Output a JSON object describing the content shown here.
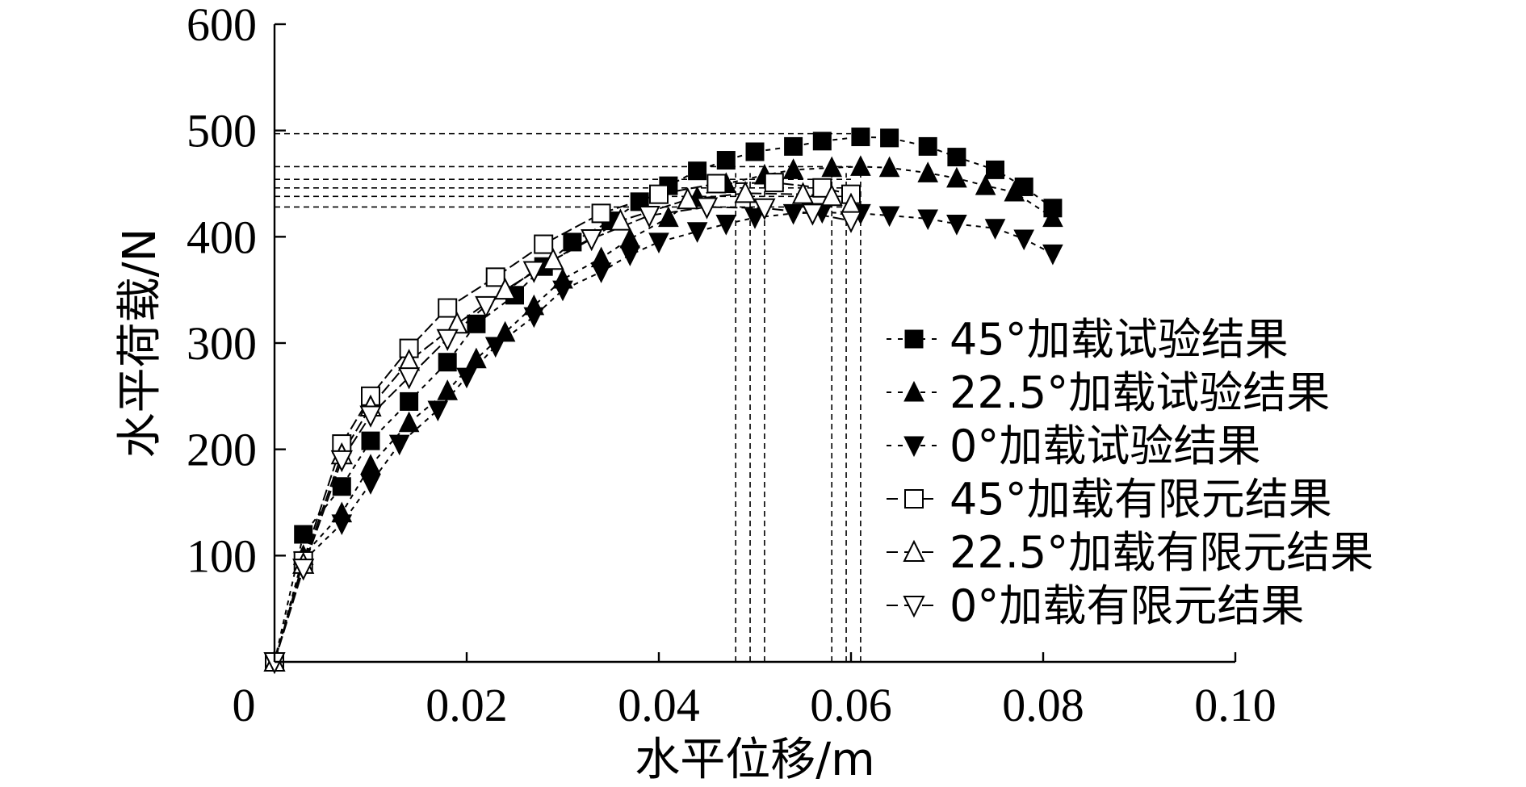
{
  "chart_data": {
    "type": "line",
    "xlabel": "水平位移/m",
    "ylabel": "水平荷载/N",
    "xlim": [
      0,
      0.1
    ],
    "ylim": [
      0,
      600
    ],
    "x_ticks": [
      "0",
      "0.02",
      "0.04",
      "0.06",
      "0.08",
      "0.10"
    ],
    "y_ticks": [
      "100",
      "200",
      "300",
      "400",
      "500",
      "600"
    ],
    "grid": false,
    "legend_position": "right",
    "series": [
      {
        "name": "45°加载试验结果",
        "marker": "square-filled",
        "dash": "6 6",
        "points": [
          [
            0,
            0
          ],
          [
            0.003,
            120
          ],
          [
            0.007,
            165
          ],
          [
            0.01,
            208
          ],
          [
            0.014,
            245
          ],
          [
            0.018,
            282
          ],
          [
            0.021,
            318
          ],
          [
            0.025,
            345
          ],
          [
            0.028,
            372
          ],
          [
            0.031,
            395
          ],
          [
            0.035,
            415
          ],
          [
            0.038,
            433
          ],
          [
            0.041,
            448
          ],
          [
            0.044,
            462
          ],
          [
            0.047,
            472
          ],
          [
            0.05,
            480
          ],
          [
            0.054,
            485
          ],
          [
            0.057,
            490
          ],
          [
            0.061,
            494
          ],
          [
            0.064,
            493
          ],
          [
            0.068,
            485
          ],
          [
            0.071,
            475
          ],
          [
            0.075,
            463
          ],
          [
            0.078,
            447
          ],
          [
            0.081,
            427
          ]
        ]
      },
      {
        "name": "22.5°加载试验结果",
        "marker": "triangle-up-filled",
        "dash": "6 6",
        "points": [
          [
            0,
            0
          ],
          [
            0.003,
            100
          ],
          [
            0.007,
            140
          ],
          [
            0.01,
            185
          ],
          [
            0.014,
            225
          ],
          [
            0.018,
            255
          ],
          [
            0.021,
            285
          ],
          [
            0.024,
            310
          ],
          [
            0.027,
            335
          ],
          [
            0.03,
            360
          ],
          [
            0.034,
            380
          ],
          [
            0.037,
            398
          ],
          [
            0.041,
            418
          ],
          [
            0.044,
            437
          ],
          [
            0.047,
            450
          ],
          [
            0.051,
            458
          ],
          [
            0.054,
            463
          ],
          [
            0.058,
            465
          ],
          [
            0.061,
            466
          ],
          [
            0.064,
            465
          ],
          [
            0.068,
            460
          ],
          [
            0.071,
            455
          ],
          [
            0.074,
            448
          ],
          [
            0.077,
            442
          ],
          [
            0.081,
            418
          ]
        ]
      },
      {
        "name": "0°加载试验结果",
        "marker": "triangle-down-filled",
        "dash": "6 6",
        "points": [
          [
            0,
            0
          ],
          [
            0.003,
            95
          ],
          [
            0.007,
            130
          ],
          [
            0.01,
            168
          ],
          [
            0.013,
            205
          ],
          [
            0.017,
            237
          ],
          [
            0.02,
            268
          ],
          [
            0.023,
            297
          ],
          [
            0.027,
            325
          ],
          [
            0.03,
            350
          ],
          [
            0.034,
            367
          ],
          [
            0.037,
            383
          ],
          [
            0.04,
            395
          ],
          [
            0.044,
            405
          ],
          [
            0.047,
            412
          ],
          [
            0.05,
            418
          ],
          [
            0.054,
            422
          ],
          [
            0.057,
            423
          ],
          [
            0.061,
            422
          ],
          [
            0.064,
            420
          ],
          [
            0.068,
            417
          ],
          [
            0.071,
            412
          ],
          [
            0.075,
            408
          ],
          [
            0.078,
            398
          ],
          [
            0.081,
            384
          ]
        ]
      },
      {
        "name": "45°加载有限元结果",
        "marker": "square-open",
        "dash": "14 5",
        "points": [
          [
            0,
            0
          ],
          [
            0.003,
            95
          ],
          [
            0.007,
            205
          ],
          [
            0.01,
            250
          ],
          [
            0.014,
            295
          ],
          [
            0.018,
            333
          ],
          [
            0.023,
            362
          ],
          [
            0.028,
            393
          ],
          [
            0.034,
            422
          ],
          [
            0.04,
            440
          ],
          [
            0.046,
            450
          ],
          [
            0.052,
            451
          ],
          [
            0.057,
            446
          ],
          [
            0.06,
            440
          ]
        ]
      },
      {
        "name": "22.5°加载有限元结果",
        "marker": "triangle-up-open",
        "dash": "14 5",
        "points": [
          [
            0,
            0
          ],
          [
            0.003,
            92
          ],
          [
            0.007,
            195
          ],
          [
            0.01,
            240
          ],
          [
            0.014,
            283
          ],
          [
            0.019,
            318
          ],
          [
            0.024,
            350
          ],
          [
            0.029,
            378
          ],
          [
            0.036,
            415
          ],
          [
            0.043,
            435
          ],
          [
            0.049,
            441
          ],
          [
            0.055,
            440
          ],
          [
            0.058,
            438
          ],
          [
            0.06,
            430
          ]
        ]
      },
      {
        "name": "0°加载有限元结果",
        "marker": "triangle-down-open",
        "dash": "14 5",
        "points": [
          [
            0,
            0
          ],
          [
            0.003,
            88
          ],
          [
            0.007,
            190
          ],
          [
            0.01,
            232
          ],
          [
            0.014,
            268
          ],
          [
            0.018,
            304
          ],
          [
            0.022,
            335
          ],
          [
            0.027,
            368
          ],
          [
            0.033,
            398
          ],
          [
            0.039,
            420
          ],
          [
            0.045,
            428
          ],
          [
            0.051,
            427
          ],
          [
            0.056,
            422
          ],
          [
            0.06,
            415
          ]
        ]
      }
    ],
    "reference_lines": {
      "horizontal_y": [
        497,
        466,
        454,
        446,
        438,
        428
      ],
      "vertical_x": [
        0.048,
        0.0495,
        0.051,
        0.058,
        0.0595,
        0.061
      ]
    }
  }
}
